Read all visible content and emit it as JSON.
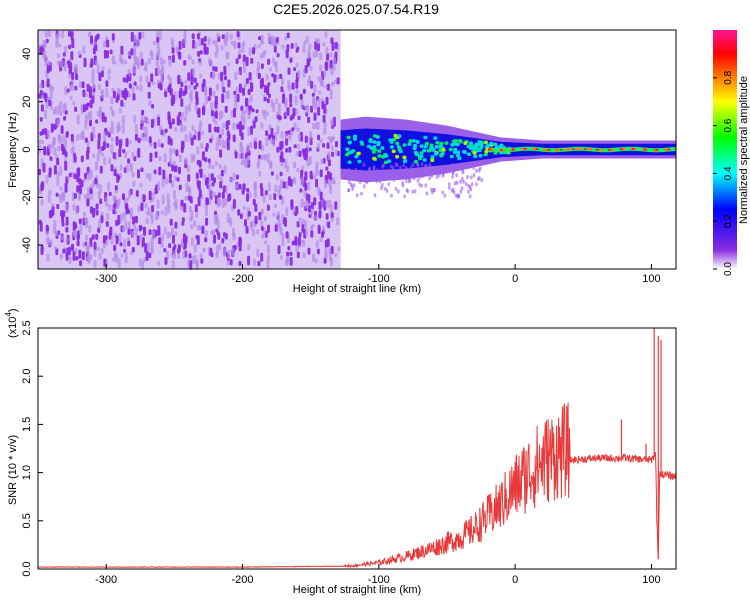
{
  "title": "C2E5.2026.025.07.54.R19",
  "colors": {
    "spectrogram_noise": "#8a2be2",
    "spectrogram_noise_light": "#d9c6f5",
    "snr_line": "#e83a3a",
    "axis": "#000000",
    "background": "#ffffff"
  },
  "chart_data": [
    {
      "type": "heatmap",
      "name": "spectrogram",
      "xlabel": "Height of straight line (km)",
      "ylabel": "Frequency (Hz)",
      "xlim": [
        -350,
        118
      ],
      "ylim": [
        -50,
        50
      ],
      "xticks": [
        -300,
        -200,
        -100,
        0,
        100
      ],
      "xtick_labels": [
        "-300",
        "-200",
        "-100",
        "0",
        "100"
      ],
      "yticks": [
        -40,
        -20,
        0,
        20,
        40
      ],
      "ytick_labels": [
        "-40",
        "-20",
        "0",
        "20",
        "40"
      ],
      "noise_region_x": [
        -350,
        -128
      ],
      "signal_band": [
        {
          "x": -128,
          "halfwidth": 10
        },
        {
          "x": -110,
          "halfwidth": 11
        },
        {
          "x": -80,
          "halfwidth": 10
        },
        {
          "x": -50,
          "halfwidth": 8
        },
        {
          "x": -30,
          "halfwidth": 6
        },
        {
          "x": -10,
          "halfwidth": 4
        },
        {
          "x": 20,
          "halfwidth": 3
        },
        {
          "x": 60,
          "halfwidth": 3
        },
        {
          "x": 100,
          "halfwidth": 3
        },
        {
          "x": 118,
          "halfwidth": 3
        }
      ],
      "colorbar": {
        "label": "Normalized spectral amplitude",
        "range": [
          0,
          1
        ],
        "ticks": [
          0.0,
          0.2,
          0.4,
          0.6,
          0.8
        ],
        "tick_labels": [
          "0.0",
          "0.2",
          "0.4",
          "0.6",
          "0.8"
        ],
        "colormap": [
          "#ffffff",
          "#8a2be2",
          "#0000ff",
          "#00ffff",
          "#00ff00",
          "#ffff00",
          "#ff8000",
          "#ff0000",
          "#ff1493"
        ]
      },
      "grid": false
    },
    {
      "type": "line",
      "name": "snr",
      "xlabel": "Height of straight line (km)",
      "ylabel": "SNR (10 * v/v)",
      "y_multiplier": "(x10",
      "y_multiplier_exp": "4",
      "y_multiplier_close": ")",
      "xlim": [
        -350,
        118
      ],
      "ylim": [
        0.0,
        2.5
      ],
      "xticks": [
        -300,
        -200,
        -100,
        0,
        100
      ],
      "xtick_labels": [
        "-300",
        "-200",
        "-100",
        "0",
        "100"
      ],
      "yticks": [
        0.0,
        0.5,
        1.0,
        1.5,
        2.0,
        2.5
      ],
      "ytick_labels": [
        "0.0",
        "0.5",
        "1.0",
        "1.5",
        "2.0",
        "2.5"
      ],
      "series_envelope": {
        "x": [
          -350,
          -200,
          -120,
          -100,
          -80,
          -60,
          -50,
          -40,
          -30,
          -20,
          -10,
          0,
          10,
          20,
          30,
          40,
          60,
          80,
          90,
          100,
          103,
          104,
          105,
          106,
          108,
          118
        ],
        "y": [
          0.02,
          0.02,
          0.03,
          0.06,
          0.12,
          0.2,
          0.25,
          0.3,
          0.38,
          0.5,
          0.62,
          0.78,
          0.92,
          1.02,
          1.1,
          1.13,
          1.15,
          1.15,
          1.14,
          1.13,
          1.2,
          0.5,
          0.1,
          1.0,
          0.98,
          0.96
        ]
      },
      "spikes": [
        {
          "x": 30,
          "y": 1.1
        },
        {
          "x": 78,
          "y": 1.55
        },
        {
          "x": 96,
          "y": 1.3
        },
        {
          "x": 102,
          "y": 2.55
        },
        {
          "x": 105,
          "y": 2.42
        },
        {
          "x": 107,
          "y": 2.38
        }
      ],
      "grid": false
    }
  ]
}
